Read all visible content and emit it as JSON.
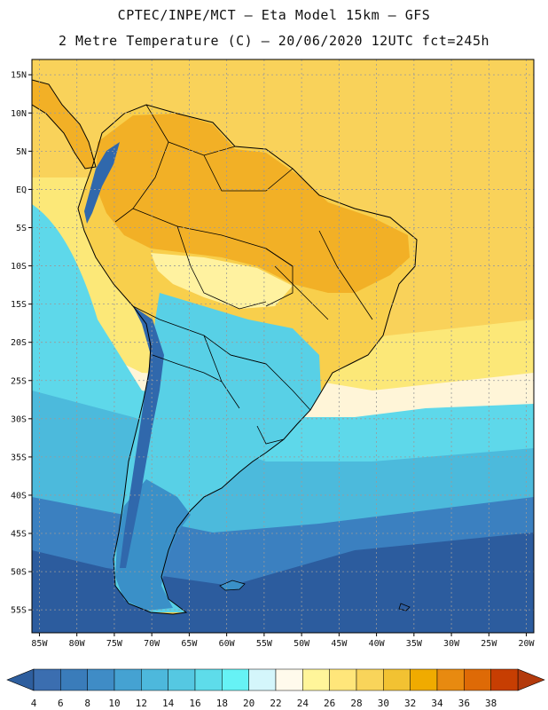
{
  "header": {
    "line1": "CPTEC/INPE/MCT –  Eta Model 15km – GFS",
    "line2": "2 Metre Temperature (C) – 20/06/2020 12UTC fct=245h"
  },
  "map": {
    "lon_min": -86,
    "lon_max": -19,
    "lat_min": -58,
    "lat_max": 17,
    "lat_ticks": [
      {
        "v": 15,
        "label": "15N"
      },
      {
        "v": 10,
        "label": "10N"
      },
      {
        "v": 5,
        "label": "5N"
      },
      {
        "v": 0,
        "label": "EQ"
      },
      {
        "v": -5,
        "label": "5S"
      },
      {
        "v": -10,
        "label": "10S"
      },
      {
        "v": -15,
        "label": "15S"
      },
      {
        "v": -20,
        "label": "20S"
      },
      {
        "v": -25,
        "label": "25S"
      },
      {
        "v": -30,
        "label": "30S"
      },
      {
        "v": -35,
        "label": "35S"
      },
      {
        "v": -40,
        "label": "40S"
      },
      {
        "v": -45,
        "label": "45S"
      },
      {
        "v": -50,
        "label": "50S"
      },
      {
        "v": -55,
        "label": "55S"
      }
    ],
    "lon_ticks": [
      {
        "v": -85,
        "label": "85W"
      },
      {
        "v": -80,
        "label": "80W"
      },
      {
        "v": -75,
        "label": "75W"
      },
      {
        "v": -70,
        "label": "70W"
      },
      {
        "v": -65,
        "label": "65W"
      },
      {
        "v": -60,
        "label": "60W"
      },
      {
        "v": -55,
        "label": "55W"
      },
      {
        "v": -50,
        "label": "50W"
      },
      {
        "v": -45,
        "label": "45W"
      },
      {
        "v": -40,
        "label": "40W"
      },
      {
        "v": -35,
        "label": "35W"
      },
      {
        "v": -30,
        "label": "30W"
      },
      {
        "v": -25,
        "label": "25W"
      },
      {
        "v": -20,
        "label": "20W"
      }
    ]
  },
  "colorbar": {
    "colors": [
      "#3b6eb0",
      "#3a7cba",
      "#3f8cc6",
      "#45a2d2",
      "#4db8dc",
      "#55c8e2",
      "#5edcea",
      "#66f2f5",
      "#d4f6fb",
      "#fffaec",
      "#fff59a",
      "#ffe67a",
      "#f9d45a",
      "#f2c232",
      "#f0ab00",
      "#e88a10",
      "#de6a06",
      "#c73e02"
    ],
    "arrow_low": "#2e5e9e",
    "arrow_high": "#b33a0c",
    "labels": [
      "4",
      "6",
      "8",
      "10",
      "12",
      "14",
      "16",
      "18",
      "20",
      "22",
      "24",
      "26",
      "28",
      "30",
      "32",
      "34",
      "36",
      "38"
    ]
  },
  "layers": {
    "ocean_deep": "#2c5c9e",
    "ocean_mid": "#3b80c0",
    "ocean_cool": "#4cbadc",
    "ocean_mild": "#5ed8ea",
    "ocean_warm_pale": "#fff5d8",
    "ocean_warm": "#fce878",
    "ocean_hot": "#f9d25a",
    "land_hot": "#f2b026",
    "land_warm": "#f8cf4c",
    "land_mild": "#fff2a0",
    "land_cool": "#58d0e6",
    "land_cold": "#3a90c8",
    "andes": "#3068ac",
    "coast": "#000000",
    "grid": "#9a9a9a"
  }
}
